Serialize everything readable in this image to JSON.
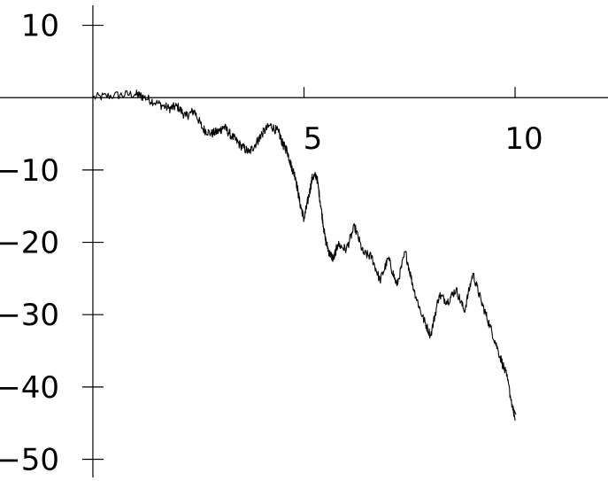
{
  "chart_data": {
    "type": "line",
    "title": "",
    "xlabel": "",
    "ylabel": "",
    "xlim": [
      -2.2,
      12.2
    ],
    "ylim": [
      -53,
      13.5
    ],
    "x_ticks": [
      {
        "value": 5,
        "label": "5"
      },
      {
        "value": 10,
        "label": "10"
      }
    ],
    "y_ticks": [
      {
        "value": 10,
        "label": "10"
      },
      {
        "value": -10,
        "label": "−10"
      },
      {
        "value": -20,
        "label": "−20"
      },
      {
        "value": -30,
        "label": "−30"
      },
      {
        "value": -40,
        "label": "−40"
      },
      {
        "value": -50,
        "label": "−50"
      }
    ],
    "grid": false,
    "series": [
      {
        "color": "#000000",
        "x": [
          0,
          0.5,
          1.0,
          1.2,
          1.5,
          1.8,
          2.0,
          2.2,
          2.4,
          2.6,
          2.8,
          3.0,
          3.1,
          3.3,
          3.5,
          3.7,
          3.9,
          4.0,
          4.2,
          4.4,
          4.5,
          4.6,
          4.7,
          4.8,
          4.9,
          5.0,
          5.1,
          5.2,
          5.3,
          5.4,
          5.5,
          5.6,
          5.7,
          5.8,
          6.0,
          6.2,
          6.4,
          6.6,
          6.8,
          7.0,
          7.2,
          7.4,
          7.6,
          7.8,
          8.0,
          8.2,
          8.4,
          8.6,
          8.8,
          9.0,
          9.2,
          9.4,
          9.6,
          9.8,
          10.0
        ],
        "y": [
          0,
          0.3,
          0.5,
          0.1,
          -0.7,
          -1.5,
          -1.2,
          -2.6,
          -1.8,
          -4.3,
          -5.0,
          -4.6,
          -4.0,
          -5.4,
          -6.6,
          -7.6,
          -6.0,
          -5.0,
          -3.8,
          -4.8,
          -6.5,
          -7.3,
          -9.5,
          -11.0,
          -14.5,
          -16.8,
          -14.0,
          -11.0,
          -10.8,
          -15.0,
          -19.5,
          -21.5,
          -22.3,
          -20.3,
          -21.0,
          -17.8,
          -21.5,
          -22.0,
          -25.3,
          -22.2,
          -26.0,
          -21.3,
          -26.5,
          -30.2,
          -32.9,
          -27.3,
          -28.2,
          -26.5,
          -29.5,
          -24.3,
          -28.2,
          -31.5,
          -35.0,
          -38.5,
          -44.6
        ]
      }
    ]
  }
}
